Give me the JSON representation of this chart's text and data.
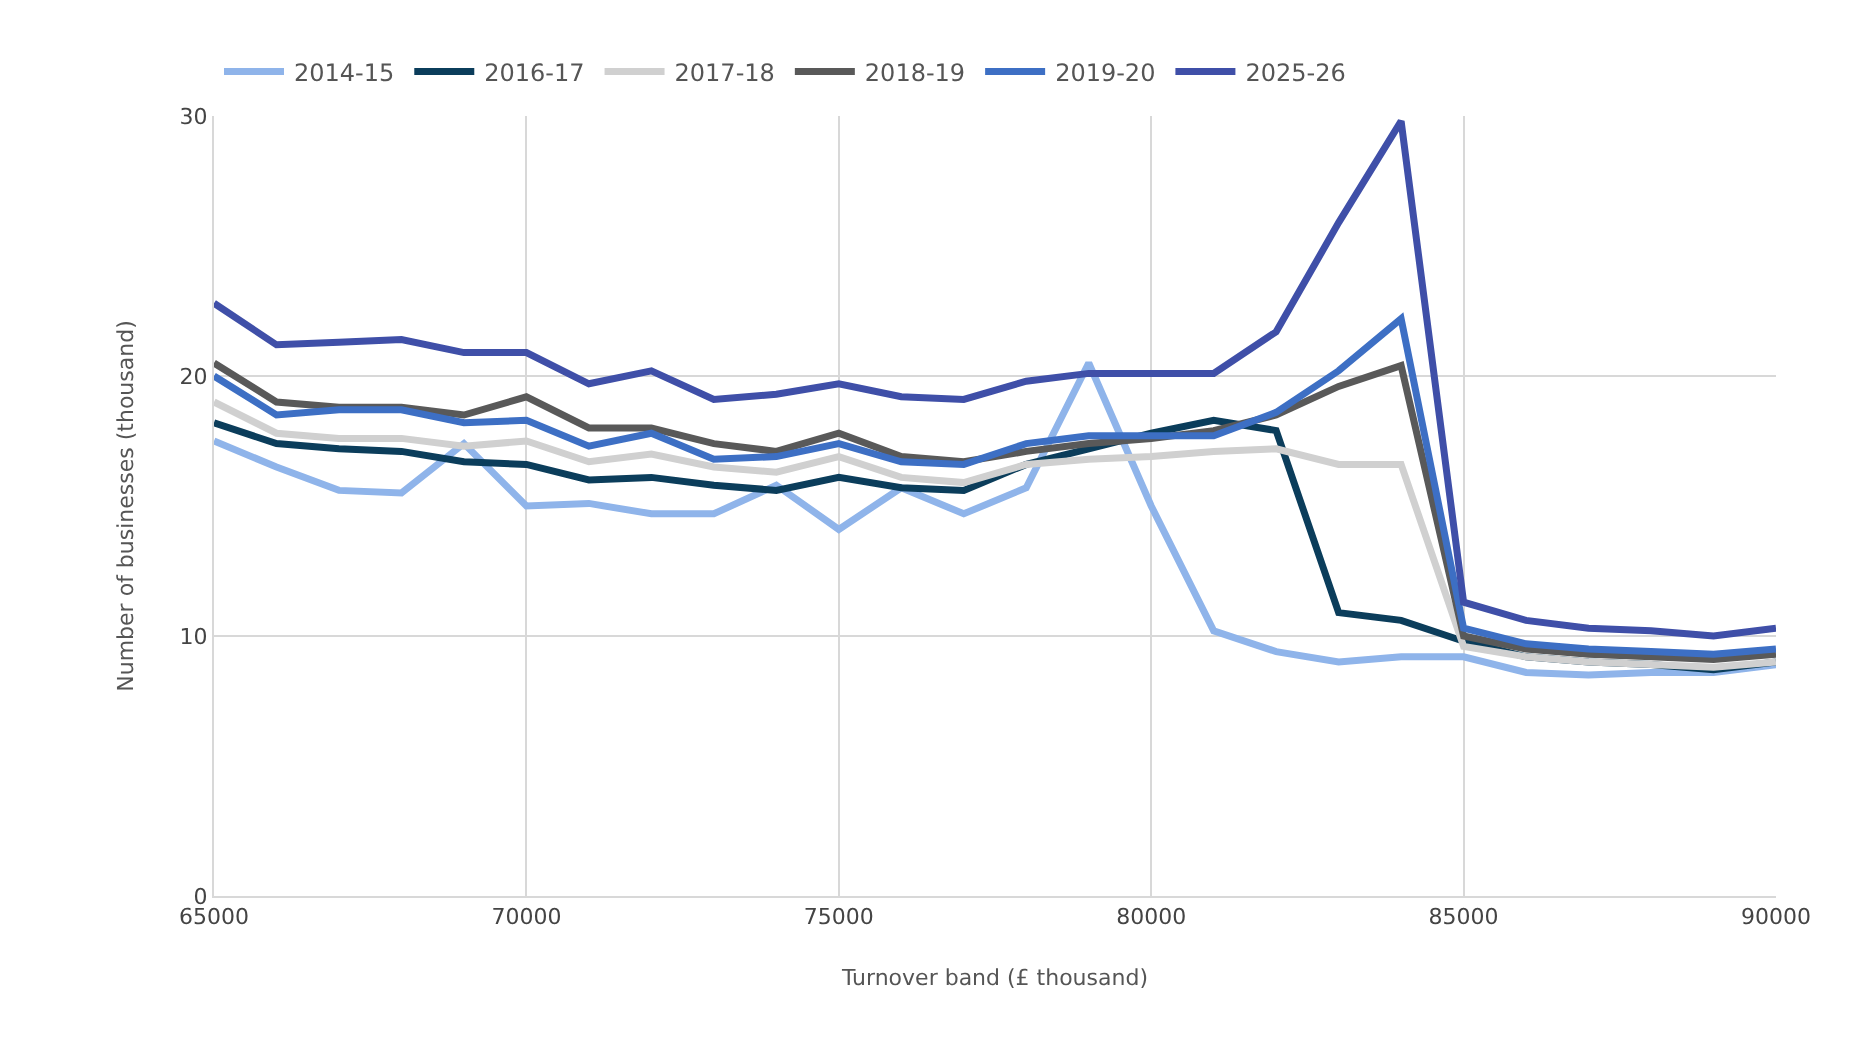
{
  "chart_data": {
    "type": "line",
    "xlabel": "Turnover band (£ thousand)",
    "ylabel": "Number of businesses (thousand)",
    "x": [
      65000,
      66000,
      67000,
      68000,
      69000,
      70000,
      71000,
      72000,
      73000,
      74000,
      75000,
      76000,
      77000,
      78000,
      79000,
      80000,
      81000,
      82000,
      83000,
      84000,
      85000,
      86000,
      87000,
      88000,
      89000,
      90000
    ],
    "xlim": [
      65000,
      90000
    ],
    "xticks": [
      65000,
      70000,
      75000,
      80000,
      85000,
      90000
    ],
    "ylim": [
      0,
      30
    ],
    "yticks": [
      0,
      10,
      20,
      30
    ],
    "grid": true,
    "legend": "top",
    "marker": "none",
    "line_style": "solid",
    "series": [
      {
        "name": "2014-15",
        "color": "#8fb4ea",
        "values": [
          17.5,
          16.5,
          15.6,
          15.5,
          17.4,
          15.0,
          15.1,
          14.7,
          14.7,
          15.8,
          14.1,
          15.7,
          14.7,
          15.7,
          20.5,
          15.0,
          10.2,
          9.4,
          9.0,
          9.2,
          9.2,
          8.6,
          8.5,
          8.6,
          8.6,
          8.9
        ]
      },
      {
        "name": "2016-17",
        "color": "#0b3d5b",
        "values": [
          18.2,
          17.4,
          17.2,
          17.1,
          16.7,
          16.6,
          16.0,
          16.1,
          15.8,
          15.6,
          16.1,
          15.7,
          15.6,
          16.6,
          17.2,
          17.8,
          18.3,
          17.9,
          10.9,
          10.6,
          9.8,
          9.2,
          9.0,
          8.9,
          8.7,
          9.0
        ]
      },
      {
        "name": "2017-18",
        "color": "#d0d0d0",
        "values": [
          19.0,
          17.8,
          17.6,
          17.6,
          17.3,
          17.5,
          16.7,
          17.0,
          16.5,
          16.3,
          16.9,
          16.1,
          15.9,
          16.6,
          16.8,
          16.9,
          17.1,
          17.2,
          16.6,
          16.6,
          9.6,
          9.2,
          9.0,
          8.9,
          8.8,
          9.0
        ]
      },
      {
        "name": "2018-19",
        "color": "#595959",
        "values": [
          20.5,
          19.0,
          18.8,
          18.8,
          18.5,
          19.2,
          18.0,
          18.0,
          17.4,
          17.1,
          17.8,
          16.9,
          16.7,
          17.1,
          17.4,
          17.6,
          17.9,
          18.5,
          19.6,
          20.4,
          10.0,
          9.5,
          9.3,
          9.2,
          9.1,
          9.3
        ]
      },
      {
        "name": "2019-20",
        "color": "#3d6fc4",
        "values": [
          20.0,
          18.5,
          18.7,
          18.7,
          18.2,
          18.3,
          17.3,
          17.8,
          16.8,
          16.9,
          17.4,
          16.7,
          16.6,
          17.4,
          17.7,
          17.7,
          17.7,
          18.6,
          20.2,
          22.2,
          10.3,
          9.7,
          9.5,
          9.4,
          9.3,
          9.5
        ]
      },
      {
        "name": "2025-26",
        "color": "#3f4fa8",
        "values": [
          22.8,
          21.2,
          21.3,
          21.4,
          20.9,
          20.9,
          19.7,
          20.2,
          19.1,
          19.3,
          19.7,
          19.2,
          19.1,
          19.8,
          20.1,
          20.1,
          20.1,
          21.7,
          25.9,
          29.8,
          11.3,
          10.6,
          10.3,
          10.2,
          10.0,
          10.3
        ]
      }
    ]
  }
}
